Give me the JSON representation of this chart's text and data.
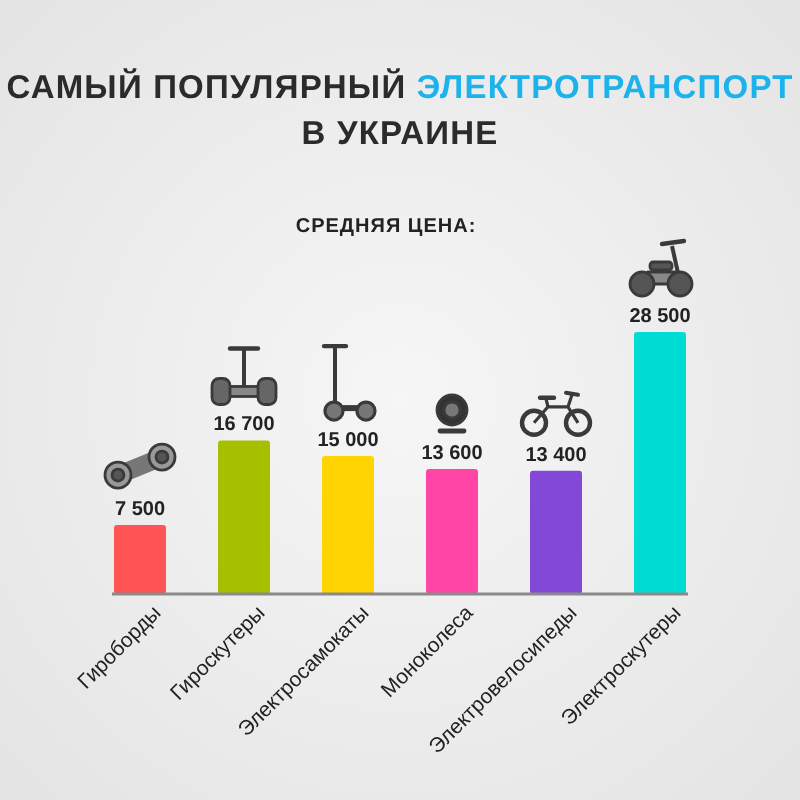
{
  "chart_data": {
    "type": "bar",
    "title": "САМЫЙ ПОПУЛЯРНЫЙ ЭЛЕКТРОТРАНСПОРТ В УКРАИНЕ",
    "subtitle": "СРЕДНЯЯ ЦЕНА:",
    "categories": [
      "Гироборды",
      "Гироскутеры",
      "Электросамокаты",
      "Моноколеса",
      "Электровелосипеды",
      "Электроскутеры"
    ],
    "values": [
      7500,
      16700,
      15000,
      13600,
      13400,
      28500
    ],
    "colors": [
      "#ff5454",
      "#a6c000",
      "#ffd400",
      "#ff46a6",
      "#8448d6",
      "#00dcd4"
    ],
    "value_labels": [
      "7 500",
      "16 700",
      "15 000",
      "13 600",
      "13 400",
      "28 500"
    ]
  }
}
